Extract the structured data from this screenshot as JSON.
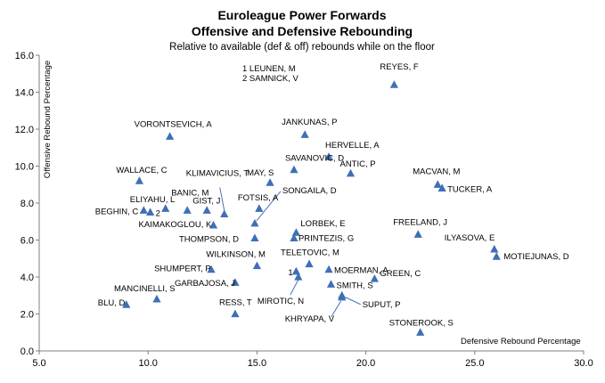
{
  "chart_data": {
    "type": "scatter",
    "title": "Euroleague Power Forwards",
    "title_line2": "Offensive and Defensive Rebounding",
    "subtitle": "Relative to available (def & off) rebounds while on the floor",
    "xlabel": "Defensive Rebound Percentage",
    "ylabel": "Offensive Rebound Percentage",
    "xlim": [
      5.0,
      30.0
    ],
    "ylim": [
      0.0,
      16.0
    ],
    "x_ticks": [
      "5.0",
      "10.0",
      "15.0",
      "20.0",
      "25.0",
      "30.0"
    ],
    "y_ticks": [
      "0.0",
      "2.0",
      "4.0",
      "6.0",
      "8.0",
      "10.0",
      "12.0",
      "14.0",
      "16.0"
    ],
    "marker_color": "#3f6fb5",
    "grid": false,
    "legend": "none",
    "notes": [
      "1 LEUNEN, M",
      "2 SAMNICK, V"
    ],
    "points": [
      {
        "name": "REYES, F",
        "x": 21.3,
        "y": 14.4
      },
      {
        "name": "VORONTSEVICH, A",
        "x": 11.0,
        "y": 11.6
      },
      {
        "name": "JANKUNAS, P",
        "x": 17.2,
        "y": 11.7
      },
      {
        "name": "HERVELLE, A",
        "x": 18.3,
        "y": 10.5
      },
      {
        "name": "SAVANOVIC, D",
        "x": 16.7,
        "y": 9.8
      },
      {
        "name": "ANTIC, P",
        "x": 19.3,
        "y": 9.6
      },
      {
        "name": "MAY, S",
        "x": 15.6,
        "y": 9.1
      },
      {
        "name": "WALLACE, C",
        "x": 9.6,
        "y": 9.2
      },
      {
        "name": "KLIMAVICIUS, T",
        "x": 13.5,
        "y": 7.4
      },
      {
        "name": "BANIC, M",
        "x": 11.8,
        "y": 7.6
      },
      {
        "name": "ELIYAHU, L",
        "x": 10.8,
        "y": 7.7
      },
      {
        "name": "GIST, J",
        "x": 12.7,
        "y": 7.6
      },
      {
        "name": "BEGHIN, C",
        "x": 9.8,
        "y": 7.6
      },
      {
        "name": "2",
        "x": 10.1,
        "y": 7.5
      },
      {
        "name": "FOTSIS, A",
        "x": 15.1,
        "y": 7.7
      },
      {
        "name": "SONGAILA, D",
        "x": 14.9,
        "y": 6.9
      },
      {
        "name": "MACVAN, M",
        "x": 23.3,
        "y": 9.0
      },
      {
        "name": "TUCKER, A",
        "x": 23.5,
        "y": 8.8
      },
      {
        "name": "KAIMAKOGLOU, K",
        "x": 13.0,
        "y": 6.8
      },
      {
        "name": "LORBEK, E",
        "x": 16.8,
        "y": 6.4
      },
      {
        "name": "PRINTEZIS, G",
        "x": 16.7,
        "y": 6.1
      },
      {
        "name": "THOMPSON, D",
        "x": 14.9,
        "y": 6.1
      },
      {
        "name": "FREELAND, J",
        "x": 22.4,
        "y": 6.3
      },
      {
        "name": "ILYASOVA, E",
        "x": 25.9,
        "y": 5.5
      },
      {
        "name": "MOTIEJUNAS, D",
        "x": 26.0,
        "y": 5.1
      },
      {
        "name": "WILKINSON, M",
        "x": 15.0,
        "y": 4.6
      },
      {
        "name": "TELETOVIC, M",
        "x": 17.4,
        "y": 4.7
      },
      {
        "name": "SHUMPERT, P",
        "x": 12.9,
        "y": 4.4
      },
      {
        "name": "1",
        "x": 16.8,
        "y": 4.3
      },
      {
        "name": "MOERMAN, A",
        "x": 18.3,
        "y": 4.4
      },
      {
        "name": "GREEN, C",
        "x": 20.4,
        "y": 3.9
      },
      {
        "name": "MIROTIC, N",
        "x": 16.9,
        "y": 4.0
      },
      {
        "name": "SMITH, S",
        "x": 18.4,
        "y": 3.6
      },
      {
        "name": "GARBAJOSA, J",
        "x": 14.0,
        "y": 3.7
      },
      {
        "name": "MANCINELLI, S",
        "x": 10.4,
        "y": 2.8
      },
      {
        "name": "BLU, D",
        "x": 9.0,
        "y": 2.5
      },
      {
        "name": "RESS, T",
        "x": 14.0,
        "y": 2.0
      },
      {
        "name": "SUPUT, P",
        "x": 18.9,
        "y": 3.0
      },
      {
        "name": "KHRYAPA, V",
        "x": 18.9,
        "y": 2.9
      },
      {
        "name": "STONEROOK, S",
        "x": 22.5,
        "y": 1.0
      }
    ]
  }
}
